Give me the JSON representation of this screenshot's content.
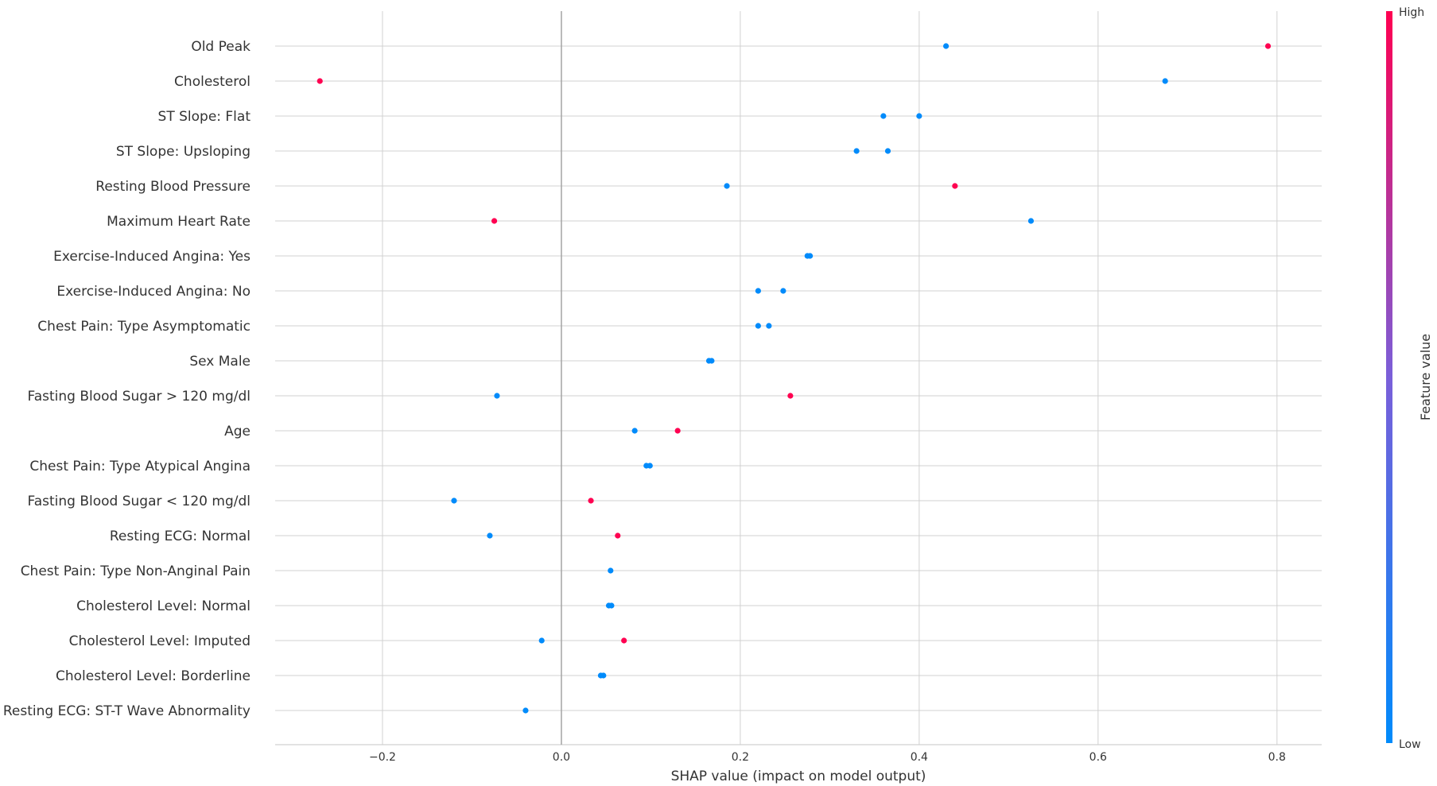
{
  "chart_data": {
    "type": "scatter",
    "subtype": "shap-beeswarm",
    "xlabel": "SHAP value (impact on model output)",
    "xlim": [
      -0.32,
      0.85
    ],
    "xticks": [
      -0.2,
      0.0,
      0.2,
      0.4,
      0.6,
      0.8
    ],
    "xtick_labels": [
      "−0.2",
      "0.0",
      "0.2",
      "0.4",
      "0.6",
      "0.8"
    ],
    "grid": true,
    "colorbar": {
      "title": "Feature value",
      "high_label": "High",
      "low_label": "Low",
      "high_color": "#ff0051",
      "low_color": "#008bfb"
    },
    "features": [
      {
        "name": "Old Peak",
        "points": [
          {
            "x": 0.43,
            "v": 0
          },
          {
            "x": 0.79,
            "v": 1
          }
        ]
      },
      {
        "name": "Cholesterol",
        "points": [
          {
            "x": -0.27,
            "v": 1
          },
          {
            "x": 0.675,
            "v": 0
          }
        ]
      },
      {
        "name": "ST Slope: Flat",
        "points": [
          {
            "x": 0.36,
            "v": 0
          },
          {
            "x": 0.4,
            "v": 0
          }
        ]
      },
      {
        "name": "ST Slope: Upsloping",
        "points": [
          {
            "x": 0.33,
            "v": 0
          },
          {
            "x": 0.365,
            "v": 0
          }
        ]
      },
      {
        "name": "Resting Blood Pressure",
        "points": [
          {
            "x": 0.185,
            "v": 0
          },
          {
            "x": 0.44,
            "v": 1
          }
        ]
      },
      {
        "name": "Maximum Heart Rate",
        "points": [
          {
            "x": -0.075,
            "v": 1
          },
          {
            "x": 0.525,
            "v": 0
          }
        ]
      },
      {
        "name": "Exercise-Induced Angina: Yes",
        "points": [
          {
            "x": 0.275,
            "v": 0
          },
          {
            "x": 0.278,
            "v": 0
          }
        ]
      },
      {
        "name": "Exercise-Induced Angina: No",
        "points": [
          {
            "x": 0.22,
            "v": 0
          },
          {
            "x": 0.248,
            "v": 0
          }
        ]
      },
      {
        "name": "Chest Pain: Type Asymptomatic",
        "points": [
          {
            "x": 0.22,
            "v": 0
          },
          {
            "x": 0.232,
            "v": 0
          }
        ]
      },
      {
        "name": "Sex Male",
        "points": [
          {
            "x": 0.165,
            "v": 0
          },
          {
            "x": 0.168,
            "v": 0
          }
        ]
      },
      {
        "name": "Fasting Blood Sugar > 120 mg/dl",
        "points": [
          {
            "x": -0.072,
            "v": 0
          },
          {
            "x": 0.256,
            "v": 1
          }
        ]
      },
      {
        "name": "Age",
        "points": [
          {
            "x": 0.082,
            "v": 0
          },
          {
            "x": 0.13,
            "v": 1
          }
        ]
      },
      {
        "name": "Chest Pain: Type Atypical Angina",
        "points": [
          {
            "x": 0.095,
            "v": 0
          },
          {
            "x": 0.099,
            "v": 0
          }
        ]
      },
      {
        "name": "Fasting Blood Sugar < 120 mg/dl",
        "points": [
          {
            "x": -0.12,
            "v": 0
          },
          {
            "x": 0.033,
            "v": 1
          }
        ]
      },
      {
        "name": "Resting ECG: Normal",
        "points": [
          {
            "x": -0.08,
            "v": 0
          },
          {
            "x": 0.063,
            "v": 1
          }
        ]
      },
      {
        "name": "Chest Pain: Type Non-Anginal Pain",
        "points": [
          {
            "x": 0.055,
            "v": 0
          }
        ]
      },
      {
        "name": "Cholesterol Level: Normal",
        "points": [
          {
            "x": 0.053,
            "v": 0
          },
          {
            "x": 0.056,
            "v": 0
          }
        ]
      },
      {
        "name": "Cholesterol Level: Imputed",
        "points": [
          {
            "x": -0.022,
            "v": 0
          },
          {
            "x": 0.07,
            "v": 1
          }
        ]
      },
      {
        "name": "Cholesterol Level: Borderline",
        "points": [
          {
            "x": 0.044,
            "v": 0
          },
          {
            "x": 0.047,
            "v": 0
          }
        ]
      },
      {
        "name": "Resting ECG: ST-T Wave Abnormality",
        "points": [
          {
            "x": -0.04,
            "v": 0
          }
        ]
      }
    ]
  }
}
